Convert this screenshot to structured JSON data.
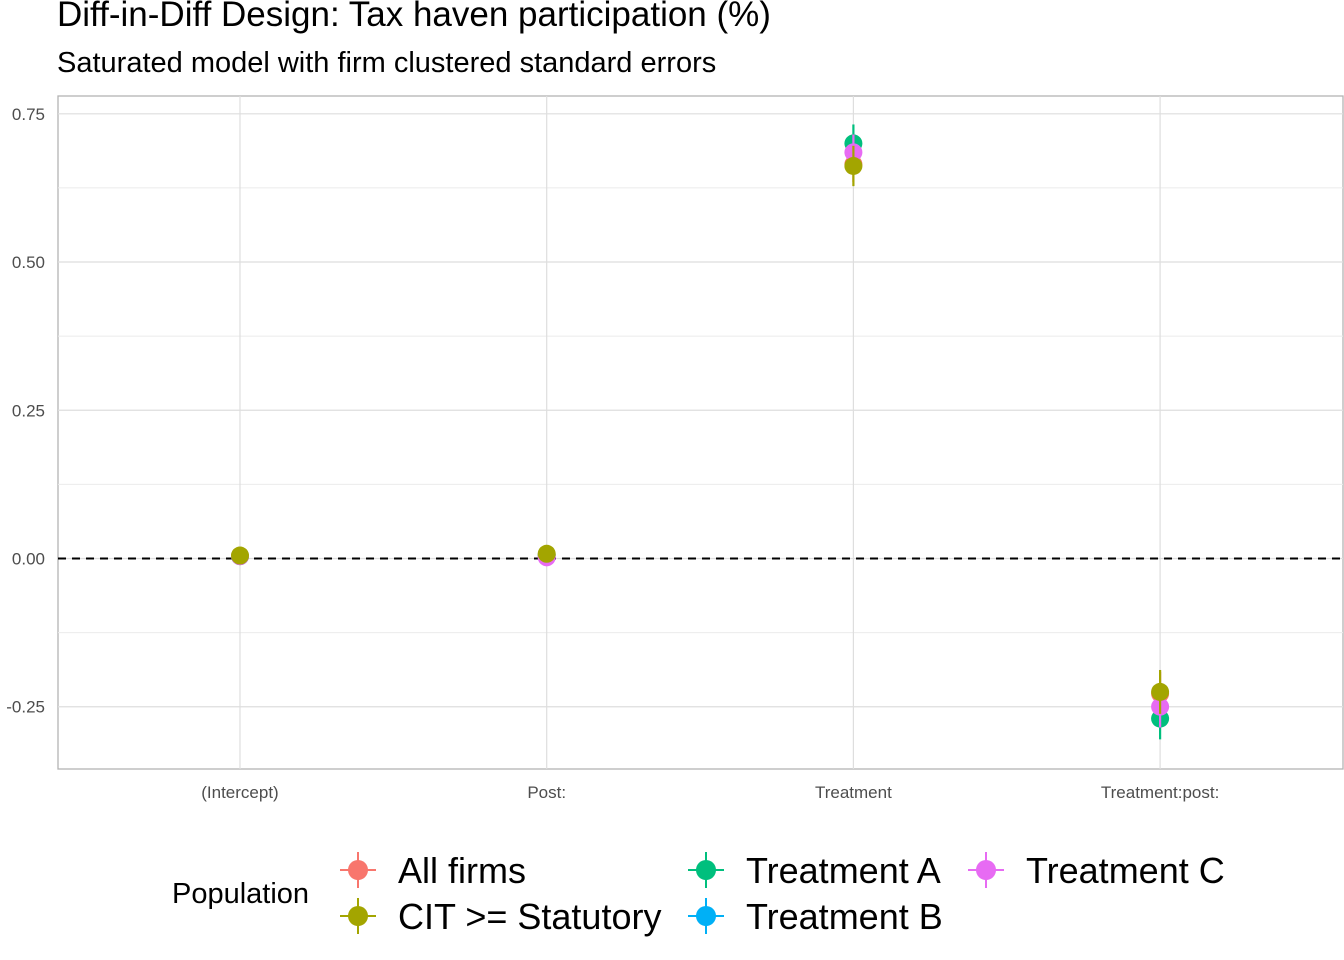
{
  "title": "Diff-in-Diff Design: Tax haven participation (%)",
  "subtitle": "Saturated model with firm clustered standard errors",
  "chart_data": {
    "type": "scatter",
    "title": "Diff-in-Diff Design: Tax haven participation (%)",
    "subtitle": "Saturated model with firm clustered standard errors",
    "xlabel": "",
    "ylabel": "",
    "categories": [
      "(Intercept)",
      "Post:",
      "Treatment",
      "Treatment:post:"
    ],
    "y_ticks": [
      "0.75",
      "0.50",
      "0.25",
      "0.00",
      "-0.25"
    ],
    "ylim": [
      -0.355,
      0.78
    ],
    "grid": true,
    "reference_line": {
      "y": 0,
      "style": "dashed"
    },
    "legend": {
      "title": "Population",
      "position": "bottom"
    },
    "series": [
      {
        "name": "All firms",
        "color": "#F8766D",
        "values": [
          0.004,
          0.006,
          0.665,
          -0.228
        ],
        "ci_low": [
          0.001,
          0.002,
          0.635,
          -0.265
        ],
        "ci_high": [
          0.007,
          0.01,
          0.695,
          -0.191
        ]
      },
      {
        "name": "Treatment A",
        "color": "#00BF7D",
        "values": [
          0.004,
          0.006,
          0.7,
          -0.27
        ],
        "ci_low": [
          0.001,
          0.002,
          0.668,
          -0.305
        ],
        "ci_high": [
          0.007,
          0.01,
          0.732,
          -0.235
        ]
      },
      {
        "name": "Treatment C",
        "color": "#E76BF3",
        "values": [
          0.004,
          0.002,
          0.685,
          -0.25
        ],
        "ci_low": [
          0.001,
          -0.002,
          0.655,
          -0.285
        ],
        "ci_high": [
          0.007,
          0.006,
          0.715,
          -0.215
        ]
      },
      {
        "name": "CIT >= Statutory",
        "color": "#A3A500",
        "values": [
          0.005,
          0.008,
          0.662,
          -0.225
        ],
        "ci_low": [
          0.002,
          0.004,
          0.628,
          -0.262
        ],
        "ci_high": [
          0.008,
          0.012,
          0.696,
          -0.188
        ]
      },
      {
        "name": "Treatment B",
        "color": "#00B0F6",
        "values": [],
        "ci_low": [],
        "ci_high": []
      }
    ]
  }
}
